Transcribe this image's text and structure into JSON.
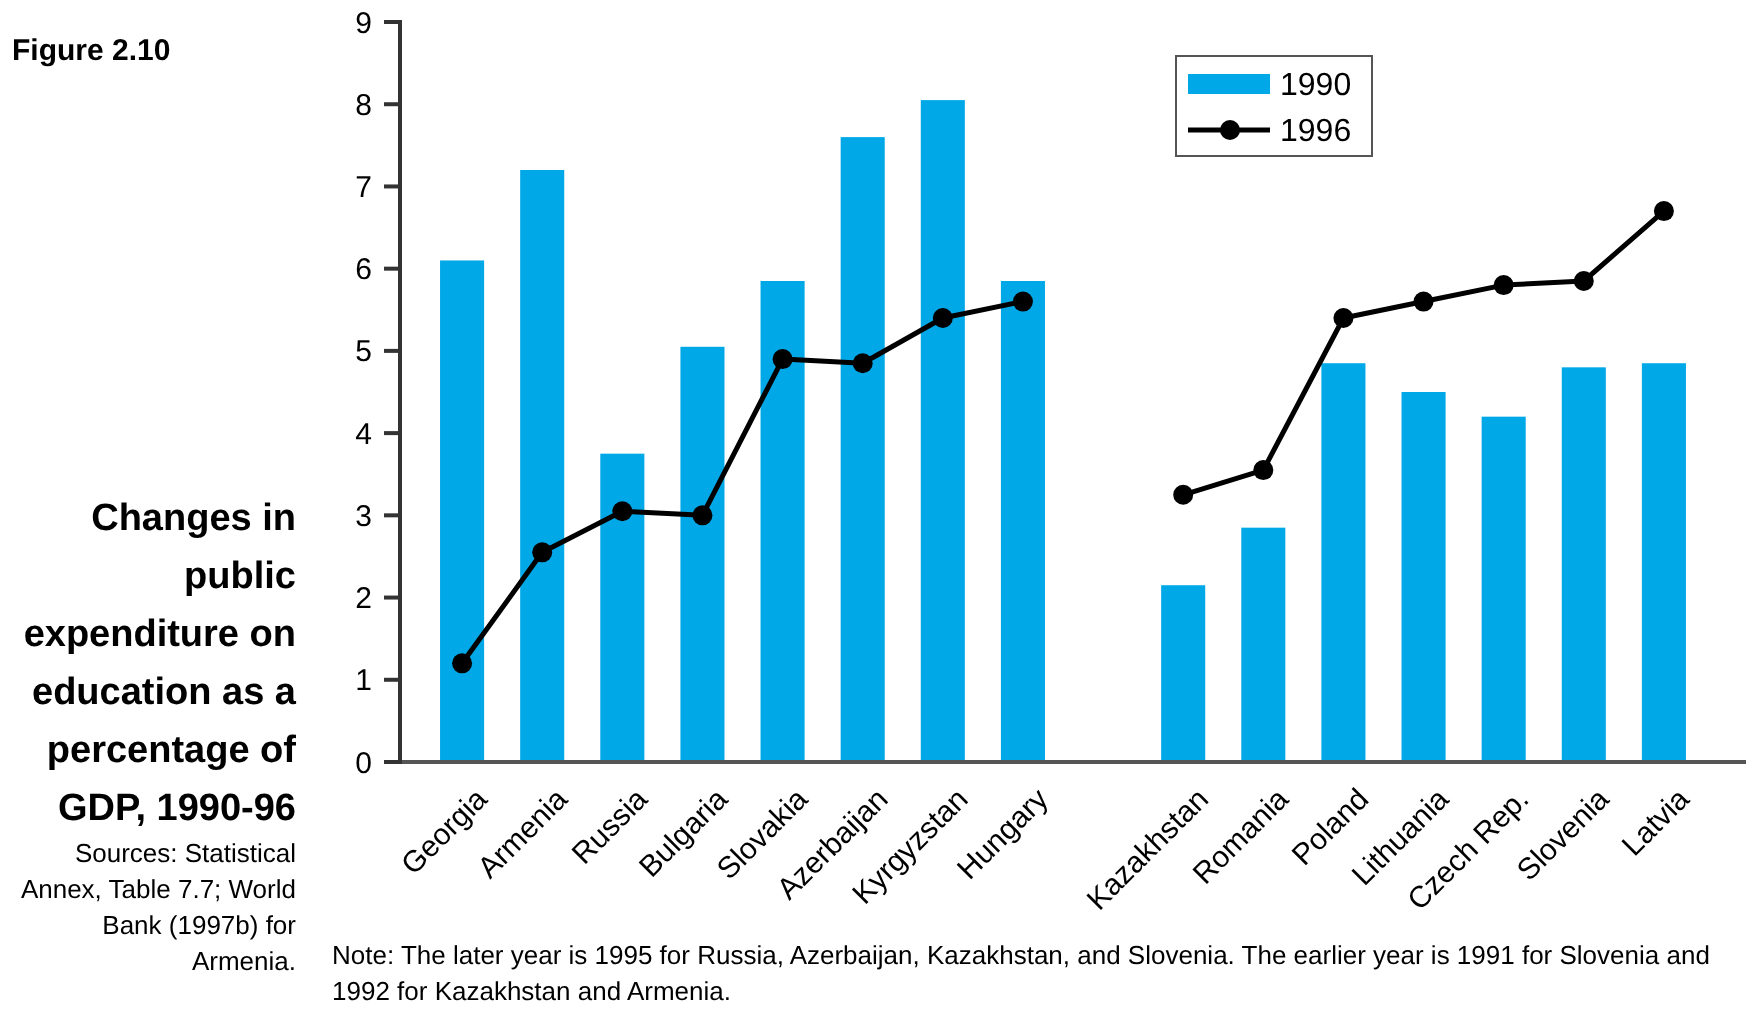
{
  "chart_data": {
    "type": "bar",
    "title": "Changes in public expenditure on education as a percentage of GDP, 1990-96",
    "annotations": [
      "Figure 2.10",
      "Sources: Statistical Annex, Table 7.7; World Bank (1997b) for Armenia.",
      "Note: The later year is 1995 for Russia, Azerbaijan, Kazakhstan, and Slovenia. The earlier year is 1991 for Slovenia and 1992 for Kazakhstan and Armenia."
    ],
    "categories": [
      "Georgia",
      "Armenia",
      "Russia",
      "Bulgaria",
      "Slovakia",
      "Azerbaijan",
      "Kyrgyzstan",
      "Hungary",
      null,
      "Kazakhstan",
      "Romania",
      "Poland",
      "Lithuania",
      "Czech Rep.",
      "Slovenia",
      "Latvia"
    ],
    "series": [
      {
        "name": "1990",
        "color": "#00a8e8",
        "values": [
          6.1,
          7.2,
          3.75,
          5.05,
          5.85,
          7.6,
          8.05,
          5.85,
          null,
          2.15,
          2.85,
          4.85,
          4.5,
          4.2,
          4.8,
          4.85
        ]
      },
      {
        "name": "1996",
        "type": "line",
        "color": "#000000",
        "marker": "circle",
        "values": [
          1.2,
          2.55,
          3.05,
          3.0,
          4.9,
          4.85,
          5.4,
          5.6,
          null,
          3.25,
          3.55,
          5.4,
          5.6,
          5.8,
          5.85,
          6.7
        ]
      }
    ],
    "ylim": [
      0,
      9
    ],
    "yticks": [
      0,
      1,
      2,
      3,
      4,
      5,
      6,
      7,
      8,
      9
    ],
    "grid": false,
    "legend": "top right"
  }
}
